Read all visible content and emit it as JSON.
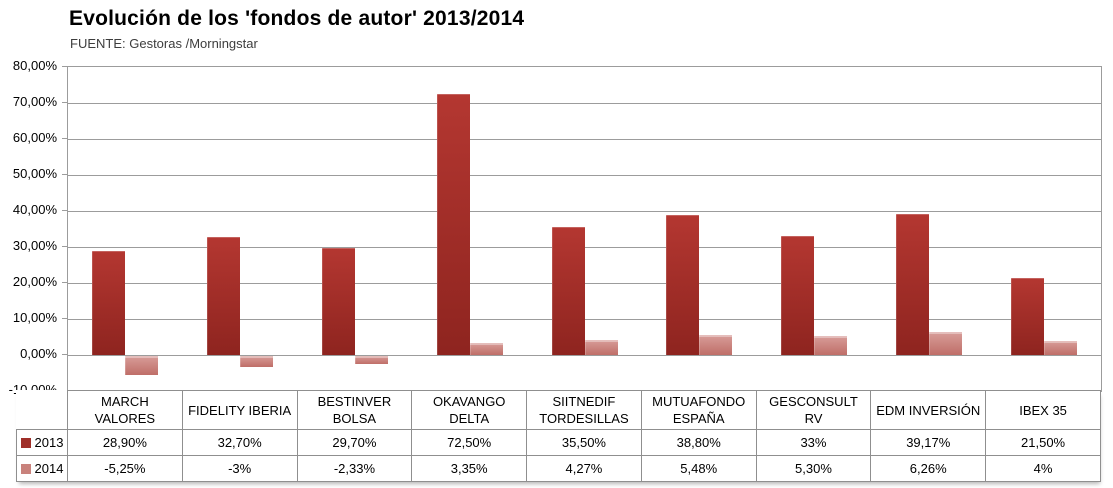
{
  "title": "Evolución de los 'fondos de autor' 2013/2014",
  "subtitle": "FUENTE: Gestoras /Morningstar",
  "chart_data": {
    "type": "bar",
    "title": "Evolución de los 'fondos de autor' 2013/2014",
    "source_note": "FUENTE: Gestoras /Morningstar",
    "categories": [
      "MARCH VALORES",
      "FIDELITY IBERIA",
      "BESTINVER BOLSA",
      "OKAVANGO DELTA",
      "SIITNEDIF TORDESILLAS",
      "MUTUAFONDO ESPAÑA",
      "GESCONSULT RV",
      "EDM INVERSIÓN",
      "IBEX 35"
    ],
    "category_display_lines": [
      [
        "MARCH",
        "VALORES"
      ],
      [
        "FIDELITY IBERIA"
      ],
      [
        "BESTINVER",
        "BOLSA"
      ],
      [
        "OKAVANGO",
        "DELTA"
      ],
      [
        "SIITNEDIF",
        "TORDESILLAS"
      ],
      [
        "MUTUAFONDO",
        "ESPAÑA"
      ],
      [
        "GESCONSULT RV"
      ],
      [
        "EDM INVERSIÓN"
      ],
      [
        "IBEX 35"
      ]
    ],
    "series": [
      {
        "name": "2013",
        "values": [
          28.9,
          32.7,
          29.7,
          72.5,
          35.5,
          38.8,
          33,
          39.17,
          21.5
        ],
        "value_labels": [
          "28,90%",
          "32,70%",
          "29,70%",
          "72,50%",
          "35,50%",
          "38,80%",
          "33%",
          "39,17%",
          "21,50%"
        ],
        "color_top": "#b43731",
        "color_bottom": "#8e241f",
        "legend_color": "#9f2f29"
      },
      {
        "name": "2014",
        "values": [
          -5.25,
          -3,
          -2.33,
          3.35,
          4.27,
          5.48,
          5.3,
          6.26,
          4
        ],
        "value_labels": [
          "-5,25%",
          "-3%",
          "-2,33%",
          "3,35%",
          "4,27%",
          "5,48%",
          "5,30%",
          "6,26%",
          "4%"
        ],
        "color_top": "#d89d99",
        "color_bottom": "#bf6e68",
        "legend_color": "#c9827c"
      }
    ],
    "ylim": [
      -10,
      80
    ],
    "ytick_step": 10,
    "ytick_labels": [
      "80,00%",
      "70,00%",
      "60,00%",
      "50,00%",
      "40,00%",
      "30,00%",
      "20,00%",
      "10,00%",
      "0,00%",
      "-10,00%"
    ],
    "grid": true,
    "legend_position": "table-left",
    "gridline_color": "#9c9c9c",
    "table_border_color": "#8f8f8f"
  }
}
